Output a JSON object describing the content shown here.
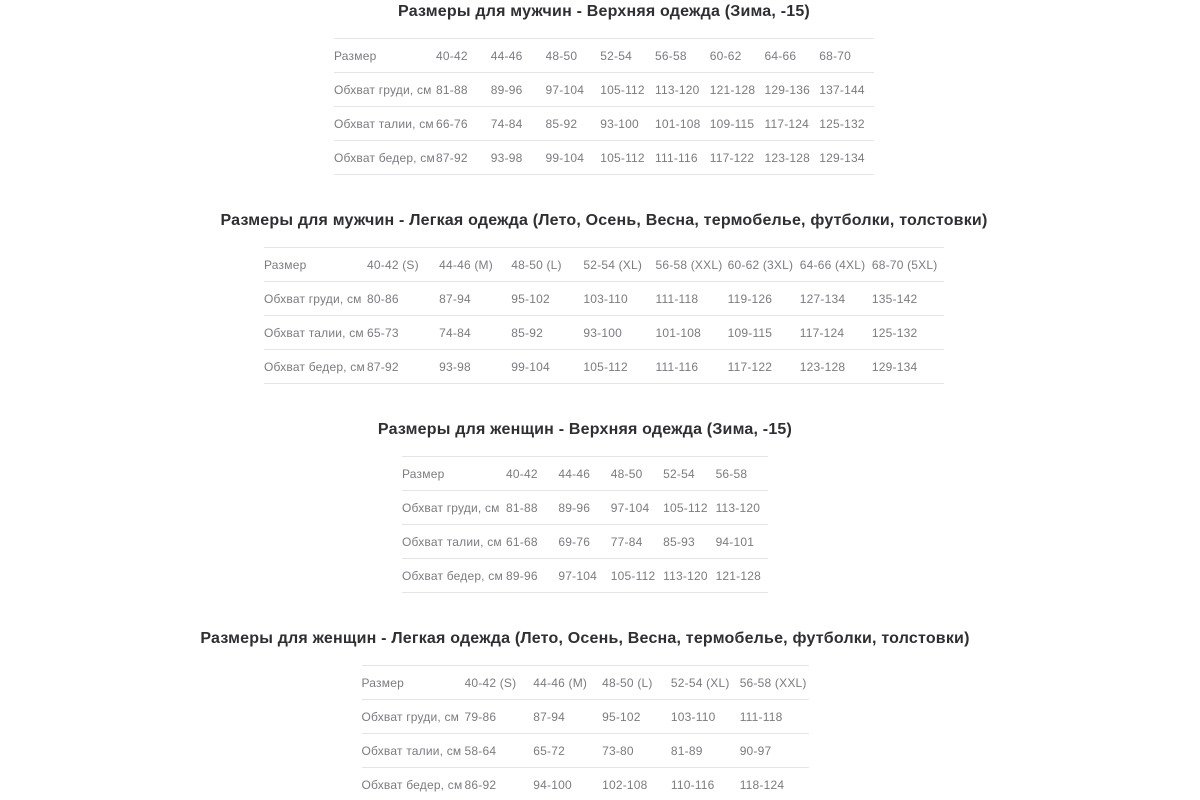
{
  "page": {
    "background_color": "#ffffff",
    "title_color": "#2f2f33",
    "table_text_color": "#7b7b81",
    "divider_color": "#e5e5e7"
  },
  "tables": [
    {
      "title": "Размеры для мужчин - Верхняя одежда (Зима, -15)",
      "header": [
        "Размер",
        "40-42",
        "44-46",
        "48-50",
        "52-54",
        "56-58",
        "60-62",
        "64-66",
        "68-70"
      ],
      "rows": [
        [
          "Обхват груди, см",
          "81-88",
          "89-96",
          "97-104",
          "105-112",
          "113-120",
          "121-128",
          "129-136",
          "137-144"
        ],
        [
          "Обхват талии, см",
          "66-76",
          "74-84",
          "85-92",
          "93-100",
          "101-108",
          "109-115",
          "117-124",
          "125-132"
        ],
        [
          "Обхват бедер, см",
          "87-92",
          "93-98",
          "99-104",
          "105-112",
          "111-116",
          "117-122",
          "123-128",
          "129-134"
        ]
      ]
    },
    {
      "title": "Размеры для мужчин - Легкая одежда (Лето, Осень, Весна, термобелье, футболки, толстовки)",
      "header": [
        "Размер",
        "40-42 (S)",
        "44-46 (M)",
        "48-50 (L)",
        "52-54 (XL)",
        "56-58 (XXL)",
        "60-62 (3XL)",
        "64-66 (4XL)",
        "68-70 (5XL)"
      ],
      "rows": [
        [
          "Обхват груди, см",
          "80-86",
          "87-94",
          "95-102",
          "103-110",
          "111-118",
          "119-126",
          "127-134",
          "135-142"
        ],
        [
          "Обхват талии, см",
          "65-73",
          "74-84",
          "85-92",
          "93-100",
          "101-108",
          "109-115",
          "117-124",
          "125-132"
        ],
        [
          "Обхват бедер, см",
          "87-92",
          "93-98",
          "99-104",
          "105-112",
          "111-116",
          "117-122",
          "123-128",
          "129-134"
        ]
      ]
    },
    {
      "title": "Размеры для женщин - Верхняя одежда (Зима, -15)",
      "header": [
        "Размер",
        "40-42",
        "44-46",
        "48-50",
        "52-54",
        "56-58"
      ],
      "rows": [
        [
          "Обхват груди, см",
          "81-88",
          "89-96",
          "97-104",
          "105-112",
          "113-120"
        ],
        [
          "Обхват талии, см",
          "61-68",
          "69-76",
          "77-84",
          "85-93",
          "94-101"
        ],
        [
          "Обхват бедер, см",
          "89-96",
          "97-104",
          "105-112",
          "113-120",
          "121-128"
        ]
      ]
    },
    {
      "title": "Размеры для женщин - Легкая одежда (Лето, Осень, Весна, термобелье, футболки, толстовки)",
      "header": [
        "Размер",
        "40-42 (S)",
        "44-46 (M)",
        "48-50 (L)",
        "52-54 (XL)",
        "56-58 (XXL)"
      ],
      "rows": [
        [
          "Обхват груди, см",
          "79-86",
          "87-94",
          "95-102",
          "103-110",
          "111-118"
        ],
        [
          "Обхват талии, см",
          "58-64",
          "65-72",
          "73-80",
          "81-89",
          "90-97"
        ],
        [
          "Обхват бедер, см",
          "86-92",
          "94-100",
          "102-108",
          "110-116",
          "118-124"
        ]
      ]
    }
  ]
}
